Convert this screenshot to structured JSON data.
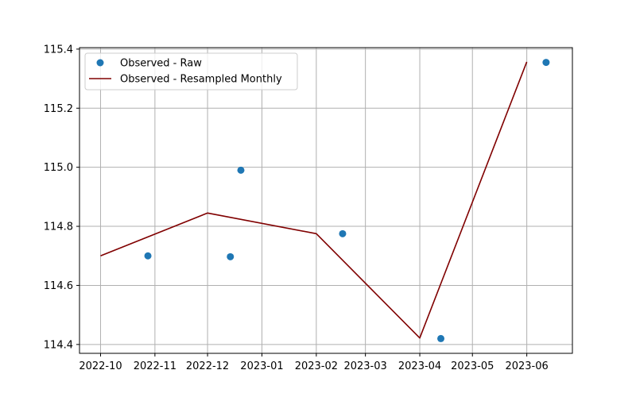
{
  "chart_data": {
    "type": "line",
    "title": "",
    "xlabel": "",
    "ylabel": "",
    "grid": true,
    "legend_position": "top-left",
    "xlim": [
      "2022-09-19",
      "2023-06-27"
    ],
    "ylim": [
      114.37,
      115.405
    ],
    "x_ticks": [
      "2022-10",
      "2022-11",
      "2022-12",
      "2023-01",
      "2023-02",
      "2023-03",
      "2023-04",
      "2023-05",
      "2023-06"
    ],
    "y_ticks": [
      "114.4",
      "114.6",
      "114.8",
      "115.0",
      "115.2",
      "115.4"
    ],
    "x_tick_values": [
      "2022-10-01",
      "2022-11-01",
      "2022-12-01",
      "2023-01-01",
      "2023-02-01",
      "2023-03-01",
      "2023-04-01",
      "2023-05-01",
      "2023-06-01"
    ],
    "y_tick_values": [
      114.4,
      114.6,
      114.8,
      115.0,
      115.2,
      115.4
    ],
    "series": [
      {
        "name": "Observed - Raw",
        "kind": "scatter",
        "color": "#1f77b4",
        "points": [
          {
            "x": "2022-10-28",
            "y": 114.7
          },
          {
            "x": "2022-12-14",
            "y": 114.697
          },
          {
            "x": "2022-12-20",
            "y": 114.99
          },
          {
            "x": "2023-02-16",
            "y": 114.775
          },
          {
            "x": "2023-04-13",
            "y": 114.42
          },
          {
            "x": "2023-06-12",
            "y": 115.355
          }
        ]
      },
      {
        "name": "Observed - Resampled Monthly",
        "kind": "line",
        "color": "#800000",
        "points": [
          {
            "x": "2022-10-01",
            "y": 114.7
          },
          {
            "x": "2022-12-01",
            "y": 114.845
          },
          {
            "x": "2023-02-01",
            "y": 114.775
          },
          {
            "x": "2023-04-01",
            "y": 114.422
          },
          {
            "x": "2023-06-01",
            "y": 115.357
          }
        ]
      }
    ]
  }
}
